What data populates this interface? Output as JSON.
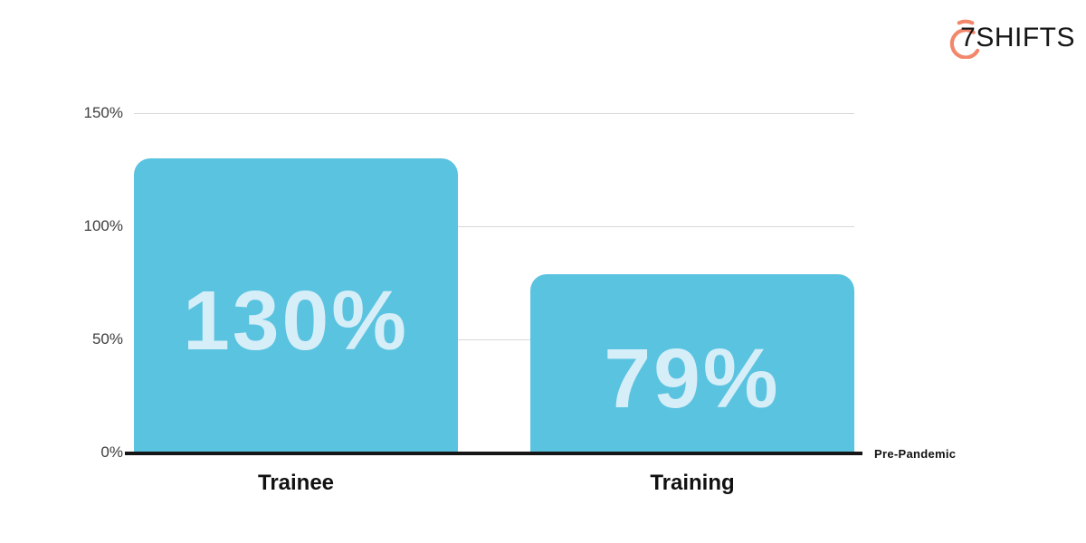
{
  "logo": {
    "text": "7SHIFTS",
    "icon": "stopwatch-icon",
    "icon_color": "#f2876b",
    "text_color": "#161616"
  },
  "chart_data": {
    "type": "bar",
    "title": "",
    "xlabel": "",
    "ylabel": "",
    "categories": [
      "Trainee",
      "Training"
    ],
    "values": [
      130,
      79
    ],
    "value_labels": [
      "130%",
      "79%"
    ],
    "y_ticks": [
      {
        "label": "150%",
        "value": 150
      },
      {
        "label": "100%",
        "value": 100
      },
      {
        "label": "50%",
        "value": 50
      },
      {
        "label": "0%",
        "value": 0
      }
    ],
    "ylim": [
      0,
      150
    ],
    "grid": true,
    "legend": false,
    "baseline_label": "Pre-Pandemic",
    "colors": {
      "bar": "#5ac3e0",
      "bar_label": "#d6eef8",
      "gridline": "#d8d8d8",
      "tick_label": "#3e3e3e",
      "axis_line": "#161616",
      "category_label": "#111111"
    }
  }
}
